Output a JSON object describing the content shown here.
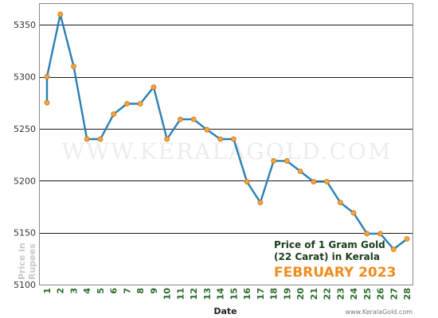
{
  "chart_data": {
    "type": "line",
    "title_line1": "Price of 1 Gram Gold",
    "title_line2": "(22 Carat) in Kerala",
    "subtitle": "FEBRUARY 2023",
    "xlabel": "Date",
    "ylabel": "Price in Rupees",
    "watermark": "WWW.KERALAGOLD.COM",
    "credit": "www.KeralaGold.com",
    "ylim": [
      5100,
      5370
    ],
    "yticks": [
      5100,
      5150,
      5200,
      5250,
      5300,
      5350
    ],
    "xticks": [
      1,
      2,
      3,
      4,
      5,
      6,
      7,
      8,
      9,
      10,
      11,
      12,
      13,
      14,
      15,
      16,
      17,
      18,
      19,
      20,
      21,
      22,
      23,
      24,
      25,
      26,
      27,
      28
    ],
    "grid": true,
    "colors": {
      "line": "#2a7fb5",
      "marker": "#f5a53c",
      "marker_edge": "#c87414"
    },
    "x": [
      1,
      1,
      2,
      3,
      4,
      5,
      6,
      7,
      8,
      9,
      10,
      11,
      12,
      13,
      14,
      15,
      16,
      17,
      18,
      19,
      20,
      21,
      22,
      23,
      24,
      25,
      26,
      27,
      28
    ],
    "y": [
      5275,
      5300,
      5360,
      5310,
      5240,
      5240,
      5264,
      5274,
      5274,
      5290,
      5240,
      5259,
      5259,
      5249,
      5240,
      5240,
      5199,
      5179,
      5219,
      5219,
      5209,
      5199,
      5199,
      5179,
      5169,
      5149,
      5149,
      5134,
      5144
    ]
  }
}
